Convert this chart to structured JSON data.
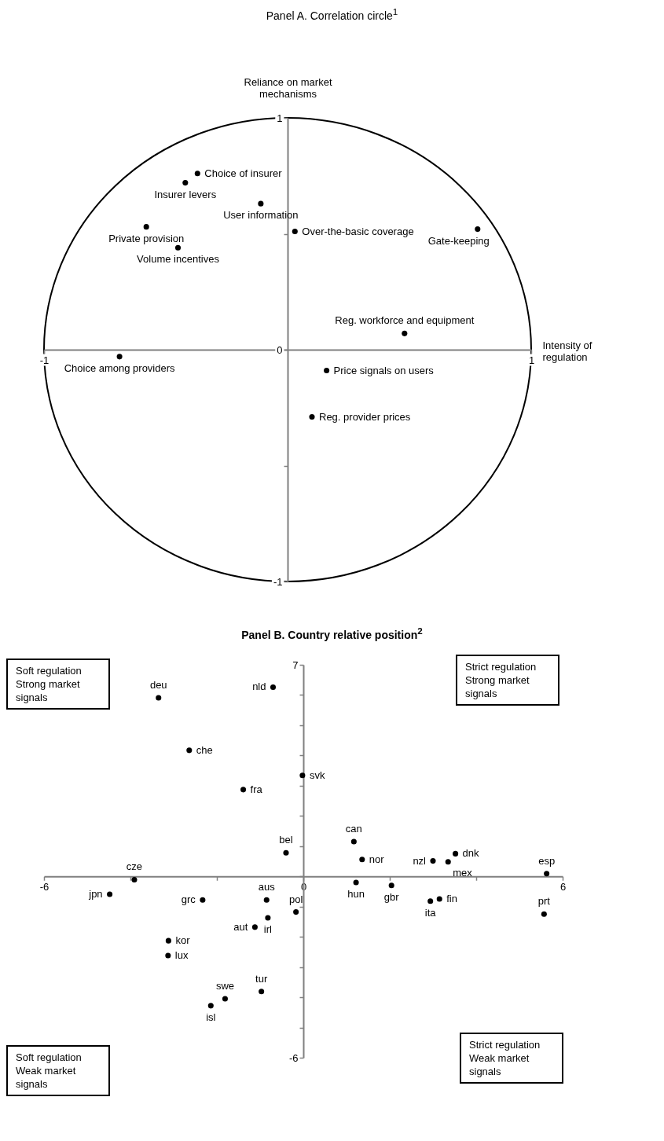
{
  "chart_data": [
    {
      "type": "scatter",
      "title": "Panel A. Correlation circle$^{1}$",
      "xlabel": "Intensity of regulation",
      "ylabel": "Reliance on market mechanisms",
      "xlim": [
        -1,
        1
      ],
      "ylim": [
        -1,
        1
      ],
      "xticks": [
        -1,
        1
      ],
      "yticks": [
        -1,
        {
          "value": -0.5,
          "label": null
        },
        0,
        {
          "value": 0.5,
          "label": null
        },
        1
      ],
      "grid": false,
      "marker": "circle",
      "series": [
        {
          "color": "#000000",
          "x": [
            -0.37,
            -0.42,
            -0.11,
            -0.58,
            -0.45,
            0.03,
            0.78,
            0.48,
            -0.69,
            0.16,
            0.1
          ],
          "values": [
            0.76,
            0.72,
            0.63,
            0.53,
            0.44,
            0.51,
            0.52,
            0.07,
            -0.03,
            -0.09,
            -0.29
          ]
        }
      ],
      "annotations": [
        {
          "text": "Choice of insurer",
          "x": -0.37,
          "y": 0.76
        },
        {
          "text": "Insurer levers",
          "x": -0.42,
          "y": 0.72
        },
        {
          "text": "User information",
          "x": -0.11,
          "y": 0.63
        },
        {
          "text": "Private provision",
          "x": -0.58,
          "y": 0.53
        },
        {
          "text": "Volume incentives",
          "x": -0.45,
          "y": 0.44
        },
        {
          "text": "Over-the-basic coverage",
          "x": 0.03,
          "y": 0.51
        },
        {
          "text": "Gate-keeping",
          "x": 0.78,
          "y": 0.52
        },
        {
          "text": "Reg. workforce and equipment",
          "x": 0.48,
          "y": 0.07
        },
        {
          "text": "Choice among providers",
          "x": -0.69,
          "y": -0.03
        },
        {
          "text": "Price signals on users",
          "x": 0.16,
          "y": -0.09
        },
        {
          "text": "Reg. provider prices",
          "x": 0.1,
          "y": -0.29
        }
      ]
    },
    {
      "type": "scatter",
      "title": "Panel B. Country relative position$^{2}$",
      "xlim": [
        -6,
        6
      ],
      "ylim": [
        -6,
        7
      ],
      "xticks": [
        -6,
        {
          "value": -4,
          "label": null
        },
        {
          "value": -2,
          "label": null
        },
        0,
        {
          "value": 2,
          "label": null
        },
        {
          "value": 4,
          "label": null
        },
        6
      ],
      "yticks": [
        -6,
        {
          "value": -5,
          "label": null
        },
        {
          "value": -4,
          "label": null
        },
        {
          "value": -3,
          "label": null
        },
        {
          "value": -2,
          "label": null
        },
        {
          "value": -1,
          "label": null
        },
        {
          "value": 0,
          "label": null
        },
        {
          "value": 1,
          "label": null
        },
        {
          "value": 2,
          "label": null
        },
        {
          "value": 3,
          "label": null
        },
        {
          "value": 4,
          "label": null
        },
        {
          "value": 5,
          "label": null
        },
        {
          "value": 6,
          "label": null
        },
        7
      ],
      "grid": false,
      "marker": "circle",
      "series": [
        {
          "color": "#000000",
          "x": [
            -3.35,
            -0.7,
            -2.64,
            -0.02,
            -1.39,
            1.17,
            -0.4,
            1.36,
            3.0,
            3.52,
            3.35,
            5.63,
            -3.91,
            -4.48,
            -2.33,
            -0.85,
            -0.17,
            -0.82,
            -1.12,
            -3.12,
            -3.13,
            -0.97,
            -1.81,
            -2.14,
            1.22,
            2.04,
            2.94,
            3.15,
            5.57
          ],
          "values": [
            5.91,
            6.26,
            4.17,
            3.34,
            2.87,
            1.15,
            0.78,
            0.56,
            0.51,
            0.75,
            0.48,
            0.09,
            -0.11,
            -0.59,
            -0.78,
            -0.78,
            -1.18,
            -1.37,
            -1.68,
            -2.13,
            -2.62,
            -3.81,
            -4.05,
            -4.28,
            -0.2,
            -0.3,
            -0.82,
            -0.75,
            -1.25
          ]
        }
      ],
      "annotations": [
        {
          "text": "deu",
          "x": -3.35,
          "y": 5.91
        },
        {
          "text": "nld",
          "x": -0.7,
          "y": 6.26
        },
        {
          "text": "che",
          "x": -2.64,
          "y": 4.17
        },
        {
          "text": "svk",
          "x": -0.02,
          "y": 3.34
        },
        {
          "text": "fra",
          "x": -1.39,
          "y": 2.87
        },
        {
          "text": "can",
          "x": 1.17,
          "y": 1.15
        },
        {
          "text": "bel",
          "x": -0.4,
          "y": 0.78
        },
        {
          "text": "nor",
          "x": 1.36,
          "y": 0.56
        },
        {
          "text": "nzl",
          "x": 3.0,
          "y": 0.51
        },
        {
          "text": "dnk",
          "x": 3.52,
          "y": 0.75
        },
        {
          "text": "mex",
          "x": 3.35,
          "y": 0.48
        },
        {
          "text": "esp",
          "x": 5.63,
          "y": 0.09
        },
        {
          "text": "cze",
          "x": -3.91,
          "y": -0.11
        },
        {
          "text": "jpn",
          "x": -4.48,
          "y": -0.59
        },
        {
          "text": "grc",
          "x": -2.33,
          "y": -0.78
        },
        {
          "text": "aus",
          "x": -0.85,
          "y": -0.78
        },
        {
          "text": "pol",
          "x": -0.17,
          "y": -1.18
        },
        {
          "text": "irl",
          "x": -0.82,
          "y": -1.37
        },
        {
          "text": "aut",
          "x": -1.12,
          "y": -1.68
        },
        {
          "text": "kor",
          "x": -3.12,
          "y": -2.13
        },
        {
          "text": "lux",
          "x": -3.13,
          "y": -2.62
        },
        {
          "text": "tur",
          "x": -0.97,
          "y": -3.81
        },
        {
          "text": "swe",
          "x": -1.81,
          "y": -4.05
        },
        {
          "text": "isl",
          "x": -2.14,
          "y": -4.28
        },
        {
          "text": "hun",
          "x": 1.22,
          "y": -0.2
        },
        {
          "text": "gbr",
          "x": 2.04,
          "y": -0.3
        },
        {
          "text": "ita",
          "x": 2.94,
          "y": -0.82
        },
        {
          "text": "fin",
          "x": 3.15,
          "y": -0.75
        },
        {
          "text": "prt",
          "x": 5.57,
          "y": -1.25
        },
        "Soft regulation Strong market signals",
        "Strict regulation Strong market signals",
        "Soft regulation Weak market signals",
        "Strict regulation Weak market signals"
      ]
    }
  ]
}
